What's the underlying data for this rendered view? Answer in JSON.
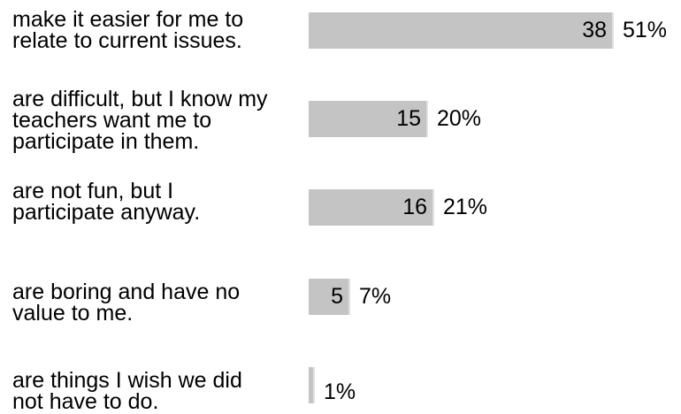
{
  "chart_data": {
    "type": "bar",
    "orientation": "horizontal",
    "categories": [
      "make it easier for me to\nrelate to current issues.",
      "are difficult, but I know my\nteachers want me to\nparticipate in them.",
      "are not fun, but I\nparticipate anyway.",
      "are boring and have no\nvalue to me.",
      "are things I wish we did\nnot have to do."
    ],
    "values": [
      38,
      15,
      16,
      5,
      1
    ],
    "value_labels": [
      "38",
      "15",
      "16",
      "5",
      ""
    ],
    "percent_labels": [
      "51%",
      "20%",
      "21%",
      "7%",
      "1%"
    ],
    "percents": [
      51,
      20,
      21,
      7,
      1
    ],
    "xlim": [
      0,
      51
    ],
    "bar_color": "#c4c4c4",
    "grid": false,
    "legend": "none"
  }
}
